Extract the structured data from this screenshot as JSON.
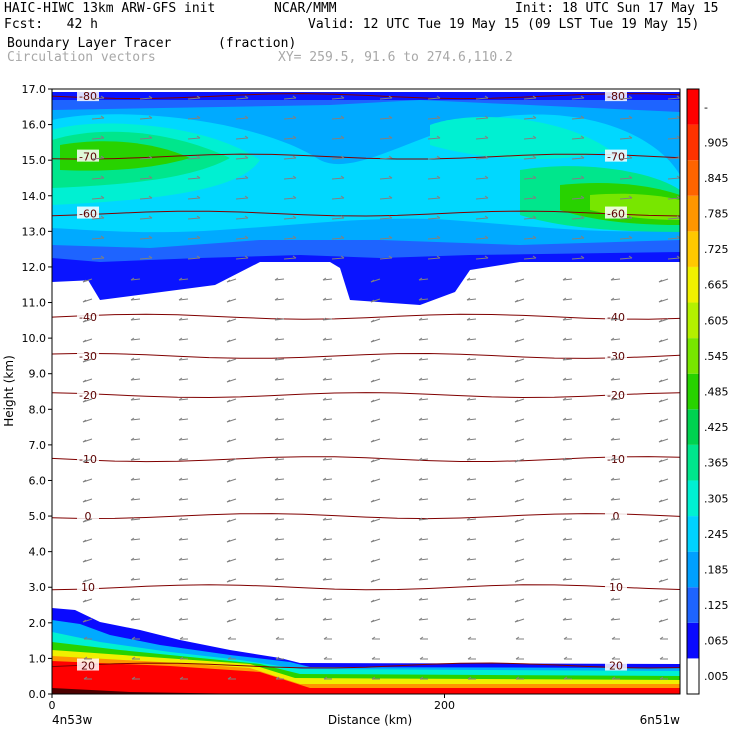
{
  "header": {
    "model": "HAIC-HIWC 13km ARW-GFS init",
    "org": "NCAR/MMM",
    "init": "Init: 18 UTC Sun 17 May 15",
    "fcst": "Fcst:   42 h",
    "valid": "Valid: 12 UTC Tue 19 May 15 (09 LST Tue 19 May 15)",
    "field1": "Boundary Layer Tracer",
    "field1_units": "(fraction)",
    "field2": "Circulation vectors",
    "xy": "XY= 259.5, 91.6 to 274.6,110.2"
  },
  "chart_data": {
    "type": "heatmap",
    "title": "Boundary Layer Tracer",
    "units": "(fraction)",
    "xlabel": "Distance (km)",
    "ylabel": "Height (km)",
    "xlim": [
      0,
      320
    ],
    "ylim": [
      0,
      17
    ],
    "x_ticks": [
      "0",
      "200"
    ],
    "y_ticks": [
      "0.0",
      "1.0",
      "2.0",
      "3.0",
      "4.0",
      "5.0",
      "6.0",
      "7.0",
      "8.0",
      "9.0",
      "10.0",
      "11.0",
      "12.0",
      "13.0",
      "14.0",
      "15.0",
      "16.0",
      "17.0"
    ],
    "x_endpoints": {
      "left": "4n53w",
      "right": "6n51w"
    },
    "colorbar_labels": [
      ".005",
      ".065",
      ".125",
      ".185",
      ".245",
      ".305",
      ".365",
      ".425",
      ".485",
      ".545",
      ".605",
      ".665",
      ".725",
      ".785",
      ".845",
      ".905",
      "-"
    ],
    "colorbar_colors": [
      "#ffffff",
      "#0a0aff",
      "#1e64ff",
      "#00a0ff",
      "#00d2ff",
      "#00f0d2",
      "#00e68c",
      "#00d250",
      "#28d200",
      "#78e600",
      "#b4f000",
      "#f0f000",
      "#ffc800",
      "#ff9600",
      "#ff6400",
      "#ff3200",
      "#ff0000"
    ],
    "temperature_isotherms": [
      {
        "label": "-80",
        "height_km": 16.8
      },
      {
        "label": "-70",
        "height_km": 15.1
      },
      {
        "label": "-60",
        "height_km": 13.5
      },
      {
        "label": "-40",
        "height_km": 10.6
      },
      {
        "label": "-30",
        "height_km": 9.5
      },
      {
        "label": "-20",
        "height_km": 8.4
      },
      {
        "label": "-10",
        "height_km": 6.6
      },
      {
        "label": "0",
        "height_km": 5.0
      },
      {
        "label": "10",
        "height_km": 3.0
      },
      {
        "label": "20",
        "height_km": 0.8
      }
    ]
  },
  "colors": {
    "isotherm": "#800000",
    "vector": "#808080",
    "background": "#ffffff"
  }
}
